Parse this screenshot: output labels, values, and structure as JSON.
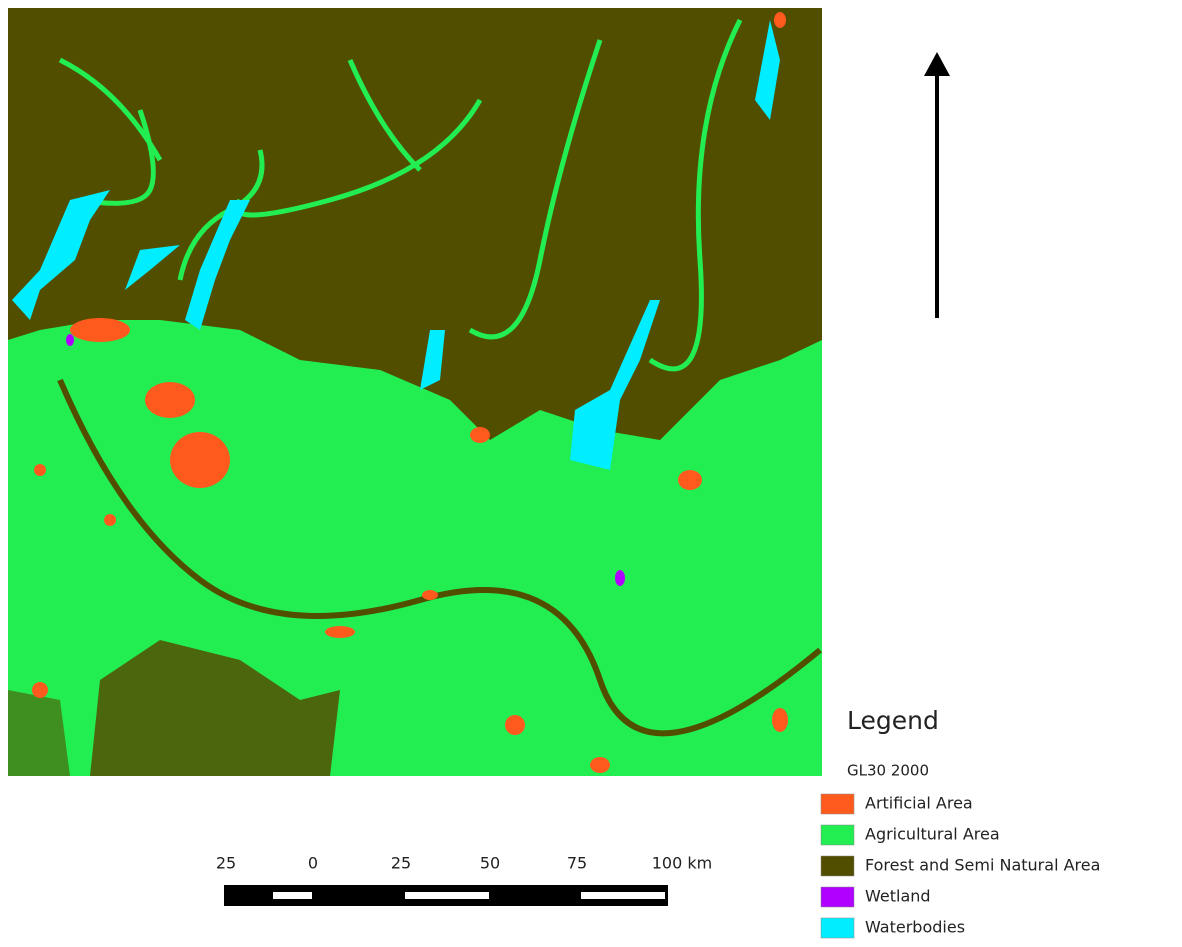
{
  "legend": {
    "title": "Legend",
    "subtitle": "GL30 2000",
    "items": [
      {
        "label": "Artificial Area",
        "color": "#ff5a1e"
      },
      {
        "label": "Agricultural Area",
        "color": "#22ee52"
      },
      {
        "label": "Forest and Semi Natural Area",
        "color": "#524e00"
      },
      {
        "label": "Wetland",
        "color": "#b000ff"
      },
      {
        "label": "Waterbodies",
        "color": "#00eeff"
      }
    ]
  },
  "scale_bar": {
    "labels": [
      "25",
      "0",
      "25",
      "50",
      "75",
      "100 km"
    ]
  }
}
